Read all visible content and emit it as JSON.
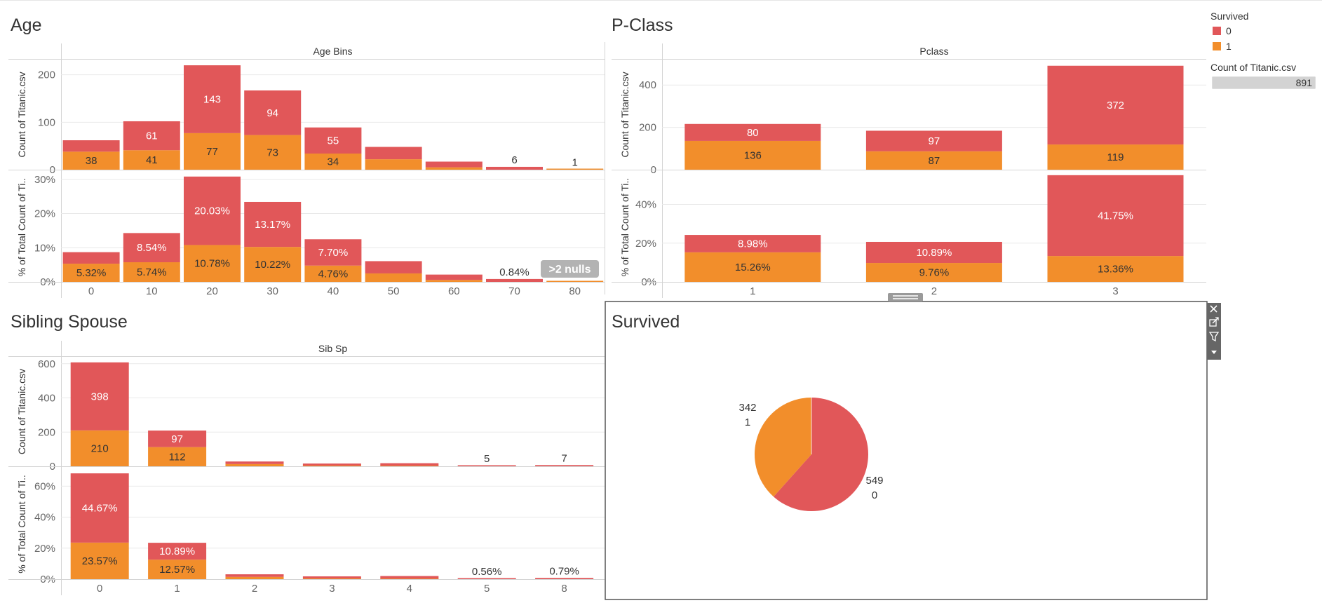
{
  "colors": {
    "survived_0": "#e15759",
    "survived_1": "#f28e2b"
  },
  "legend": {
    "title": "Survived",
    "items": [
      {
        "label": "0",
        "color": "#e15759"
      },
      {
        "label": "1",
        "color": "#f28e2b"
      }
    ],
    "count_title": "Count of Titanic.csv",
    "count_value": "891",
    "count_fraction": 1.0
  },
  "badge": {
    "text": ">2 nulls"
  },
  "toolbar": {
    "icons": [
      "close-icon",
      "popout-icon",
      "filter-icon",
      "more-options-icon"
    ]
  },
  "chart_data": [
    {
      "id": "age",
      "title": "Age",
      "type": "bar",
      "stacked": true,
      "header": "Age Bins",
      "categories": [
        "0",
        "10",
        "20",
        "30",
        "40",
        "50",
        "60",
        "70",
        "80"
      ],
      "panes": [
        {
          "ylabel": "Count of Titanic.csv",
          "ylim": [
            0,
            232
          ],
          "yticks": [
            0,
            100,
            200
          ],
          "ytick_labels": [
            "0",
            "100",
            "200"
          ],
          "series": [
            {
              "name": "1",
              "values": [
                38,
                41,
                77,
                73,
                34,
                22,
                5,
                0,
                1
              ],
              "labels": [
                "38",
                "41",
                "77",
                "73",
                "34",
                "",
                "",
                "",
                ""
              ]
            },
            {
              "name": "0",
              "values": [
                24,
                61,
                143,
                94,
                55,
                26,
                12,
                6,
                0
              ],
              "labels": [
                "",
                "61",
                "143",
                "94",
                "55",
                "",
                "",
                "",
                ""
              ]
            }
          ],
          "total_labels": [
            "",
            "",
            "",
            "",
            "",
            "",
            "",
            "6",
            "1"
          ]
        },
        {
          "ylabel": "% of Total Count of Ti..",
          "ylim": [
            0,
            32
          ],
          "yticks": [
            0,
            10,
            20,
            30
          ],
          "ytick_labels": [
            "0%",
            "10%",
            "20%",
            "30%"
          ],
          "series": [
            {
              "name": "1",
              "values": [
                5.32,
                5.74,
                10.78,
                10.22,
                4.76,
                2.47,
                0.56,
                0,
                0.11
              ],
              "labels": [
                "5.32%",
                "5.74%",
                "10.78%",
                "10.22%",
                "4.76%",
                "",
                "",
                "",
                ""
              ]
            },
            {
              "name": "0",
              "values": [
                3.37,
                8.54,
                20.03,
                13.17,
                7.7,
                3.59,
                1.57,
                0.84,
                0
              ],
              "labels": [
                "",
                "8.54%",
                "20.03%",
                "13.17%",
                "7.70%",
                "",
                "",
                "",
                ""
              ]
            }
          ],
          "total_labels": [
            "",
            "",
            "",
            "",
            "",
            "",
            "",
            "0.84%",
            ""
          ]
        }
      ]
    },
    {
      "id": "pclass",
      "title": "P-Class",
      "type": "bar",
      "stacked": true,
      "header": "Pclass",
      "categories": [
        "1",
        "2",
        "3"
      ],
      "panes": [
        {
          "ylabel": "Count of Titanic.csv",
          "ylim": [
            0,
            520
          ],
          "yticks": [
            0,
            200,
            400
          ],
          "ytick_labels": [
            "0",
            "200",
            "400"
          ],
          "series": [
            {
              "name": "1",
              "values": [
                136,
                87,
                119
              ],
              "labels": [
                "136",
                "87",
                "119"
              ]
            },
            {
              "name": "0",
              "values": [
                80,
                97,
                372
              ],
              "labels": [
                "80",
                "97",
                "372"
              ]
            }
          ],
          "total_labels": [
            "",
            "",
            ""
          ]
        },
        {
          "ylabel": "% of Total Count of Ti..",
          "ylim": [
            0,
            56.5
          ],
          "yticks": [
            0,
            20,
            40
          ],
          "ytick_labels": [
            "0%",
            "20%",
            "40%"
          ],
          "series": [
            {
              "name": "1",
              "values": [
                15.26,
                9.76,
                13.36
              ],
              "labels": [
                "15.26%",
                "9.76%",
                "13.36%"
              ]
            },
            {
              "name": "0",
              "values": [
                8.98,
                10.89,
                41.75
              ],
              "labels": [
                "8.98%",
                "10.89%",
                "41.75%"
              ]
            }
          ],
          "total_labels": [
            "",
            "",
            ""
          ]
        }
      ]
    },
    {
      "id": "sibsp",
      "title": "Sibling Spouse",
      "type": "bar",
      "stacked": true,
      "header": "Sib Sp",
      "categories": [
        "0",
        "1",
        "2",
        "3",
        "4",
        "5",
        "8"
      ],
      "panes": [
        {
          "ylabel": "Count of Titanic.csv",
          "ylim": [
            0,
            640
          ],
          "yticks": [
            0,
            200,
            400,
            600
          ],
          "ytick_labels": [
            "0",
            "200",
            "400",
            "600"
          ],
          "series": [
            {
              "name": "1",
              "values": [
                210,
                112,
                13,
                4,
                3,
                0,
                0
              ],
              "labels": [
                "210",
                "112",
                "",
                "",
                "",
                "",
                ""
              ]
            },
            {
              "name": "0",
              "values": [
                398,
                97,
                15,
                12,
                15,
                5,
                7
              ],
              "labels": [
                "398",
                "97",
                "",
                "",
                "",
                "",
                ""
              ]
            }
          ],
          "total_labels": [
            "",
            "",
            "",
            "",
            "",
            "5",
            "7"
          ]
        },
        {
          "ylabel": "% of Total Count of Ti..",
          "ylim": [
            0,
            71
          ],
          "yticks": [
            0,
            20,
            40,
            60
          ],
          "ytick_labels": [
            "0%",
            "20%",
            "40%",
            "60%"
          ],
          "series": [
            {
              "name": "1",
              "values": [
                23.57,
                12.57,
                1.46,
                0.45,
                0.34,
                0,
                0
              ],
              "labels": [
                "23.57%",
                "12.57%",
                "",
                "",
                "",
                "",
                ""
              ]
            },
            {
              "name": "0",
              "values": [
                44.67,
                10.89,
                1.68,
                1.35,
                1.68,
                0.56,
                0.79
              ],
              "labels": [
                "44.67%",
                "10.89%",
                "",
                "",
                "",
                "",
                ""
              ]
            }
          ],
          "total_labels": [
            "",
            "",
            "",
            "",
            "",
            "0.56%",
            "0.79%"
          ]
        }
      ]
    },
    {
      "id": "survived",
      "title": "Survived",
      "type": "pie",
      "slices": [
        {
          "name": "0",
          "value": 549,
          "label_value": "549",
          "label_name": "0",
          "color": "#e15759"
        },
        {
          "name": "1",
          "value": 342,
          "label_value": "342",
          "label_name": "1",
          "color": "#f28e2b"
        }
      ]
    }
  ]
}
